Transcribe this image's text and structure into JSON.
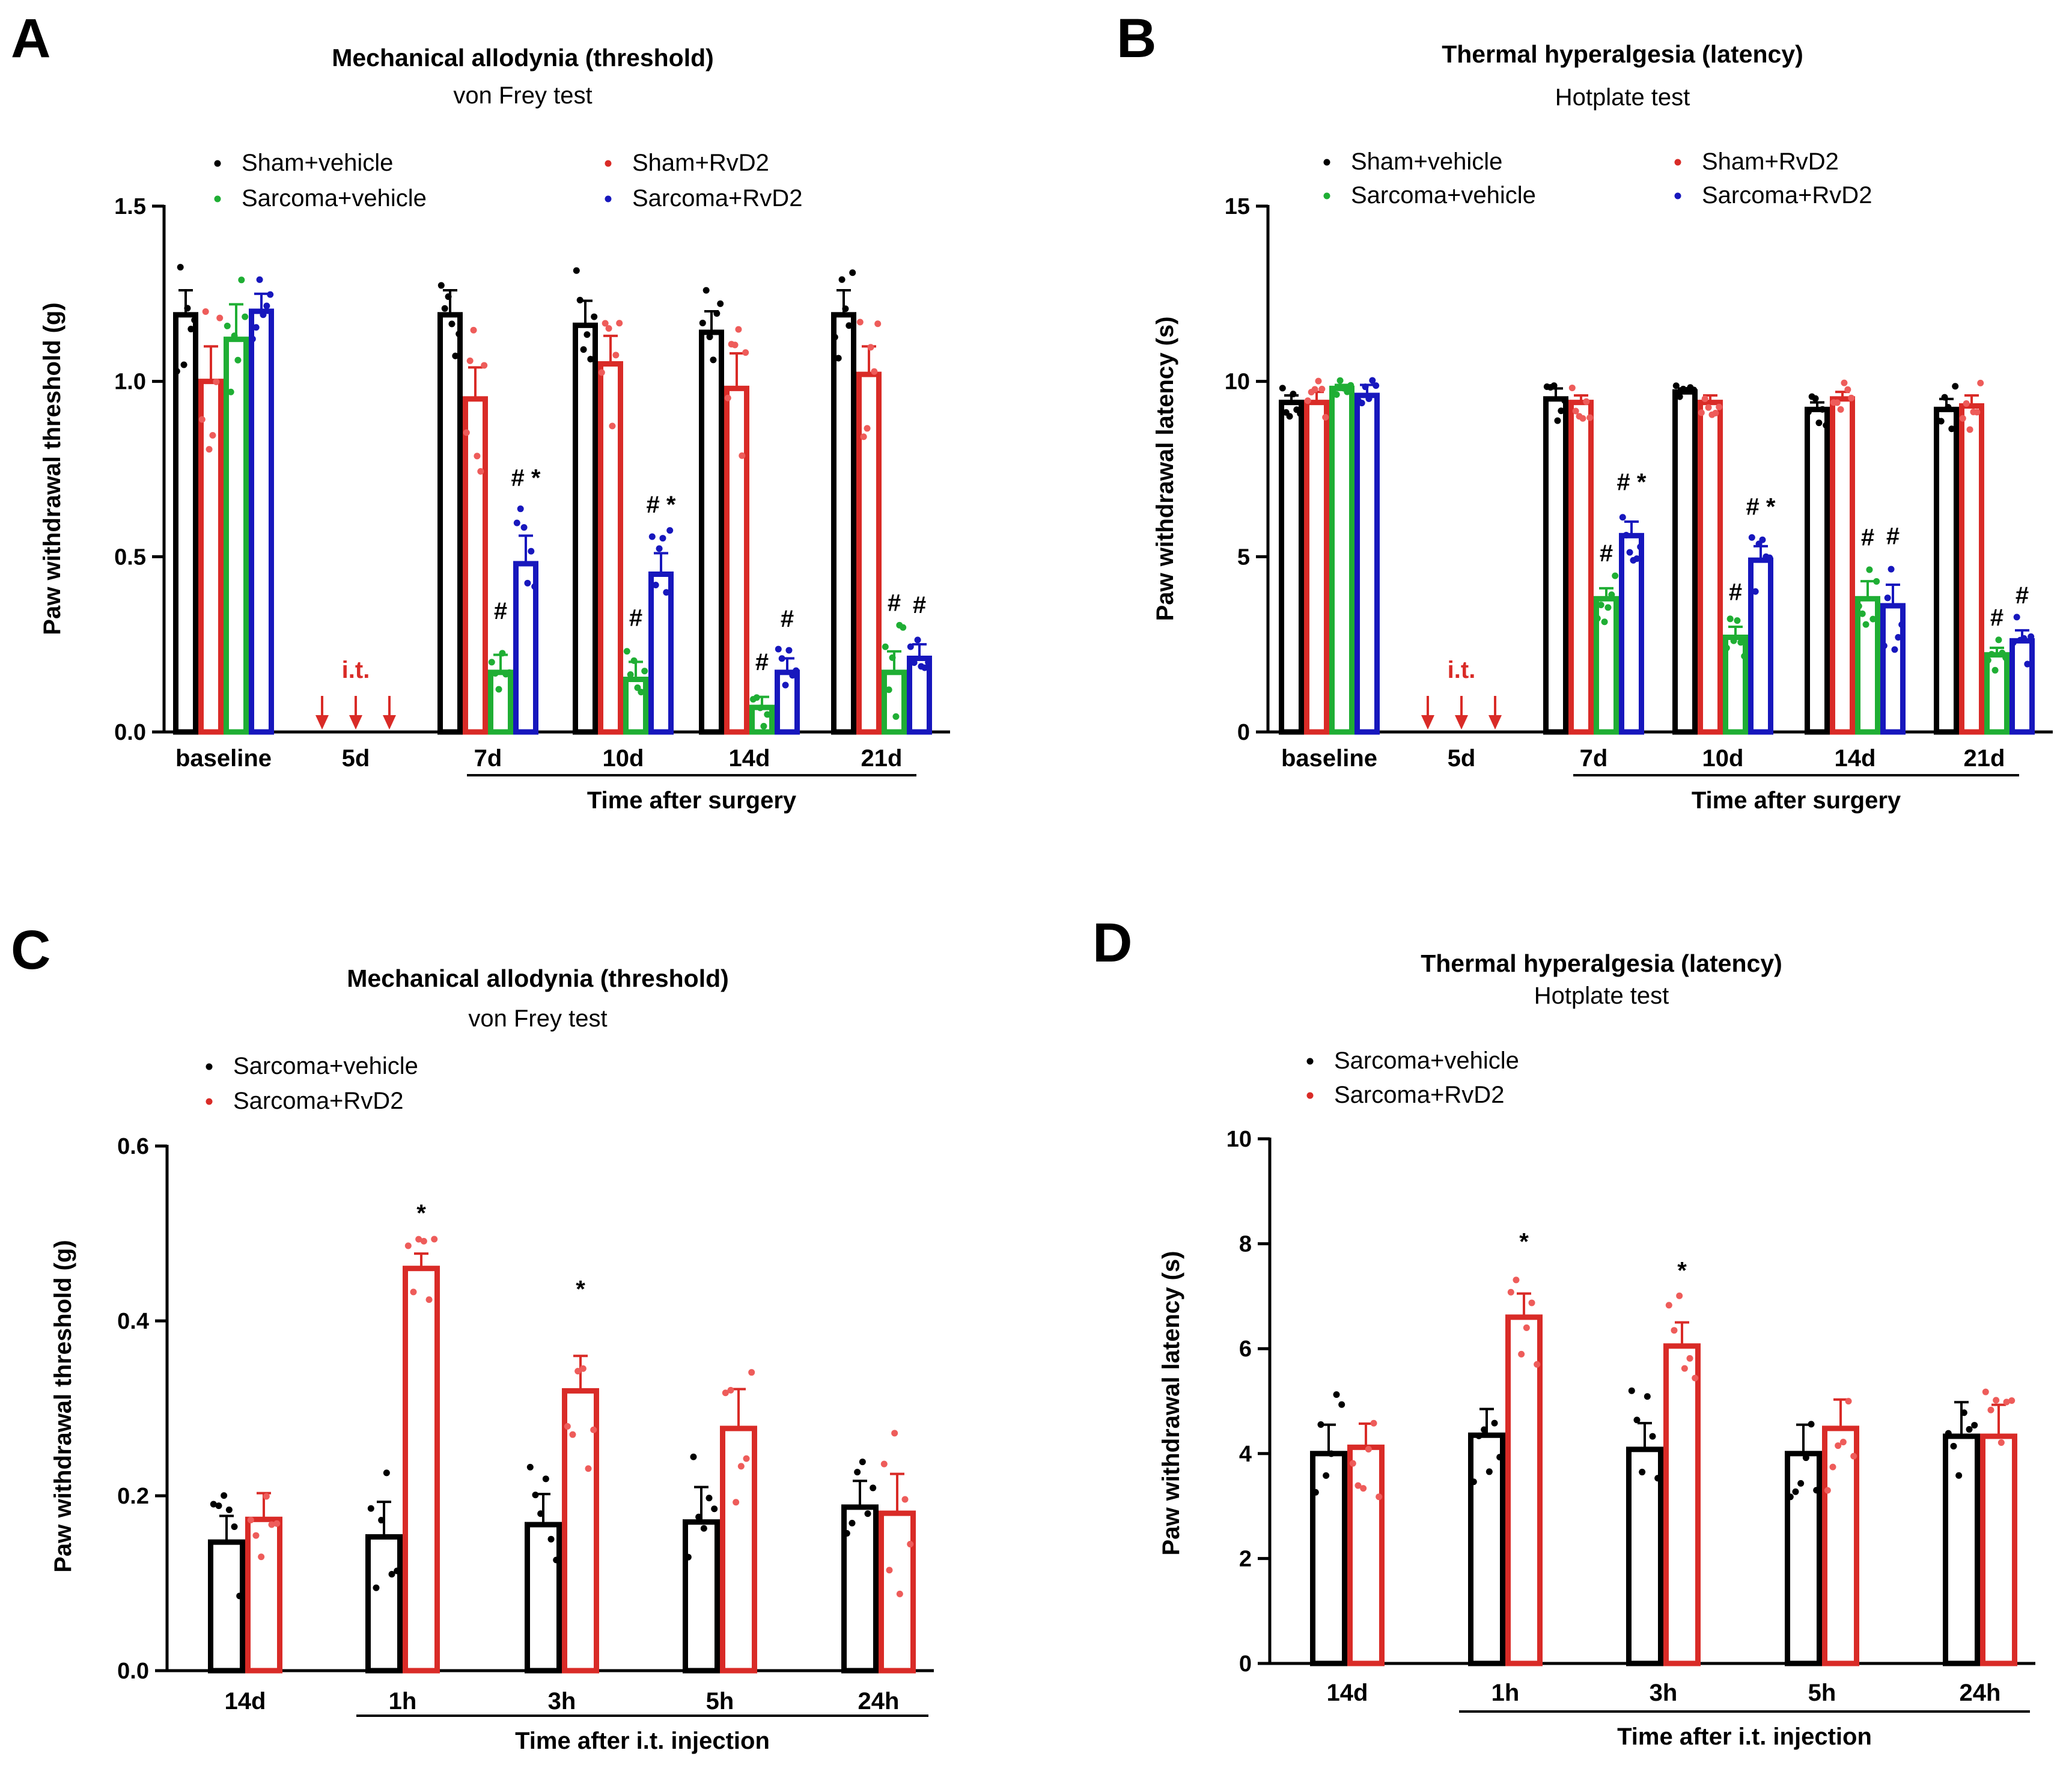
{
  "colors": {
    "black": "#000000",
    "red": "#d92b27",
    "redlight": "#ee5c5a",
    "green": "#1fae34",
    "blue": "#1717bd"
  },
  "chart_data": [
    {
      "panel": "A",
      "type": "bar",
      "title": "Mechanical allodynia (threshold)",
      "subtitle": "von Frey test",
      "ylabel": "Paw withdrawal threshold (g)",
      "xlabel": "Time after surgery",
      "ylim": [
        0,
        1.5
      ],
      "yticks": [
        0.0,
        0.5,
        1.0,
        1.5
      ],
      "ytick_labels": [
        "0.0",
        "0.5",
        "1.0",
        "1.5"
      ],
      "categories": [
        "baseline",
        "5d",
        "7d",
        "10d",
        "14d",
        "21d"
      ],
      "annotation": "i.t.",
      "legend": [
        "Sham+vehicle",
        "Sarcoma+vehicle",
        "Sham+RvD2",
        "Sarcoma+RvD2"
      ],
      "series": [
        {
          "name": "Sham+vehicle",
          "color": "#000000",
          "values": [
            1.19,
            null,
            1.19,
            1.16,
            1.14,
            1.19
          ],
          "sem": [
            0.07,
            null,
            0.07,
            0.07,
            0.06,
            0.07
          ]
        },
        {
          "name": "Sham+RvD2",
          "color": "#d92b27",
          "values": [
            1.0,
            null,
            0.95,
            1.05,
            0.98,
            1.02
          ],
          "sem": [
            0.1,
            null,
            0.09,
            0.08,
            0.1,
            0.08
          ]
        },
        {
          "name": "Sarcoma+vehicle",
          "color": "#1fae34",
          "values": [
            1.12,
            null,
            0.17,
            0.15,
            0.07,
            0.17
          ],
          "sem": [
            0.1,
            null,
            0.05,
            0.05,
            0.03,
            0.06
          ]
        },
        {
          "name": "Sarcoma+RvD2",
          "color": "#1717bd",
          "values": [
            1.2,
            null,
            0.48,
            0.45,
            0.17,
            0.21
          ],
          "sem": [
            0.05,
            null,
            0.08,
            0.06,
            0.04,
            0.04
          ]
        }
      ],
      "significance": [
        {
          "category": "7d",
          "series": "Sarcoma+vehicle",
          "label": "#"
        },
        {
          "category": "7d",
          "series": "Sarcoma+RvD2",
          "label": "# *"
        },
        {
          "category": "10d",
          "series": "Sarcoma+vehicle",
          "label": "#"
        },
        {
          "category": "10d",
          "series": "Sarcoma+RvD2",
          "label": "# *"
        },
        {
          "category": "14d",
          "series": "Sarcoma+vehicle",
          "label": "#"
        },
        {
          "category": "14d",
          "series": "Sarcoma+RvD2",
          "label": "#"
        },
        {
          "category": "21d",
          "series": "Sarcoma+vehicle",
          "label": "#"
        },
        {
          "category": "21d",
          "series": "Sarcoma+RvD2",
          "label": "#"
        }
      ]
    },
    {
      "panel": "B",
      "type": "bar",
      "title": "Thermal hyperalgesia (latency)",
      "subtitle": "Hotplate test",
      "ylabel": "Paw withdrawal latency (s)",
      "xlabel": "Time after surgery",
      "ylim": [
        0,
        15
      ],
      "yticks": [
        0,
        5,
        10,
        15
      ],
      "ytick_labels": [
        "0",
        "5",
        "10",
        "15"
      ],
      "categories": [
        "baseline",
        "5d",
        "7d",
        "10d",
        "14d",
        "21d"
      ],
      "annotation": "i.t.",
      "legend": [
        "Sham+vehicle",
        "Sarcoma+vehicle",
        "Sham+RvD2",
        "Sarcoma+RvD2"
      ],
      "series": [
        {
          "name": "Sham+vehicle",
          "color": "#000000",
          "values": [
            9.4,
            null,
            9.5,
            9.7,
            9.2,
            9.2
          ],
          "sem": [
            0.2,
            null,
            0.3,
            0.1,
            0.2,
            0.3
          ]
        },
        {
          "name": "Sham+RvD2",
          "color": "#d92b27",
          "values": [
            9.4,
            null,
            9.4,
            9.4,
            9.5,
            9.3
          ],
          "sem": [
            0.3,
            null,
            0.2,
            0.2,
            0.2,
            0.3
          ]
        },
        {
          "name": "Sarcoma+vehicle",
          "color": "#1fae34",
          "values": [
            9.8,
            null,
            3.8,
            2.7,
            3.8,
            2.2
          ],
          "sem": [
            0.1,
            null,
            0.3,
            0.3,
            0.5,
            0.2
          ]
        },
        {
          "name": "Sarcoma+RvD2",
          "color": "#1717bd",
          "values": [
            9.6,
            null,
            5.6,
            4.9,
            3.6,
            2.6
          ],
          "sem": [
            0.3,
            null,
            0.4,
            0.4,
            0.6,
            0.3
          ]
        }
      ],
      "significance": [
        {
          "category": "7d",
          "series": "Sarcoma+vehicle",
          "label": "#"
        },
        {
          "category": "7d",
          "series": "Sarcoma+RvD2",
          "label": "# *"
        },
        {
          "category": "10d",
          "series": "Sarcoma+vehicle",
          "label": "#"
        },
        {
          "category": "10d",
          "series": "Sarcoma+RvD2",
          "label": "# *"
        },
        {
          "category": "14d",
          "series": "Sarcoma+vehicle",
          "label": "#"
        },
        {
          "category": "14d",
          "series": "Sarcoma+RvD2",
          "label": "#"
        },
        {
          "category": "21d",
          "series": "Sarcoma+vehicle",
          "label": "#"
        },
        {
          "category": "21d",
          "series": "Sarcoma+RvD2",
          "label": "#"
        }
      ]
    },
    {
      "panel": "C",
      "type": "bar",
      "title": "Mechanical allodynia (threshold)",
      "subtitle": "von Frey test",
      "ylabel": "Paw withdrawal threshold (g)",
      "xlabel": "Time after i.t. injection",
      "ylim": [
        0,
        0.6
      ],
      "yticks": [
        0.0,
        0.2,
        0.4,
        0.6
      ],
      "ytick_labels": [
        "0.0",
        "0.2",
        "0.4",
        "0.6"
      ],
      "categories": [
        "14d",
        "1h",
        "3h",
        "5h",
        "24h"
      ],
      "legend": [
        "Sarcoma+vehicle",
        "Sarcoma+RvD2"
      ],
      "series": [
        {
          "name": "Sarcoma+vehicle",
          "color": "#000000",
          "values": [
            0.147,
            0.153,
            0.167,
            0.17,
            0.187
          ],
          "sem": [
            0.03,
            0.04,
            0.035,
            0.04,
            0.03
          ]
        },
        {
          "name": "Sarcoma+RvD2",
          "color": "#d92b27",
          "values": [
            0.173,
            0.46,
            0.32,
            0.277,
            0.18
          ],
          "sem": [
            0.03,
            0.017,
            0.04,
            0.045,
            0.045
          ]
        }
      ],
      "significance": [
        {
          "category": "1h",
          "series": "Sarcoma+RvD2",
          "label": "*"
        },
        {
          "category": "3h",
          "series": "Sarcoma+RvD2",
          "label": "*"
        }
      ]
    },
    {
      "panel": "D",
      "type": "bar",
      "title": "Thermal hyperalgesia (latency)",
      "subtitle": "Hotplate test",
      "ylabel": "Paw withdrawal latency (s)",
      "xlabel": "Time after i.t. injection",
      "ylim": [
        0,
        10
      ],
      "yticks": [
        0,
        2,
        4,
        6,
        8,
        10
      ],
      "ytick_labels": [
        "0",
        "2",
        "4",
        "6",
        "8",
        "10"
      ],
      "categories": [
        "14d",
        "1h",
        "3h",
        "5h",
        "24h"
      ],
      "legend": [
        "Sarcoma+vehicle",
        "Sarcoma+RvD2"
      ],
      "series": [
        {
          "name": "Sarcoma+vehicle",
          "color": "#000000",
          "values": [
            4.0,
            4.35,
            4.08,
            4.0,
            4.33
          ],
          "sem": [
            0.55,
            0.5,
            0.5,
            0.55,
            0.65
          ]
        },
        {
          "name": "Sarcoma+RvD2",
          "color": "#d92b27",
          "values": [
            4.12,
            6.6,
            6.05,
            4.48,
            4.33
          ],
          "sem": [
            0.45,
            0.45,
            0.45,
            0.55,
            0.6
          ]
        }
      ],
      "significance": [
        {
          "category": "1h",
          "series": "Sarcoma+RvD2",
          "label": "*"
        },
        {
          "category": "3h",
          "series": "Sarcoma+RvD2",
          "label": "*"
        }
      ]
    }
  ]
}
